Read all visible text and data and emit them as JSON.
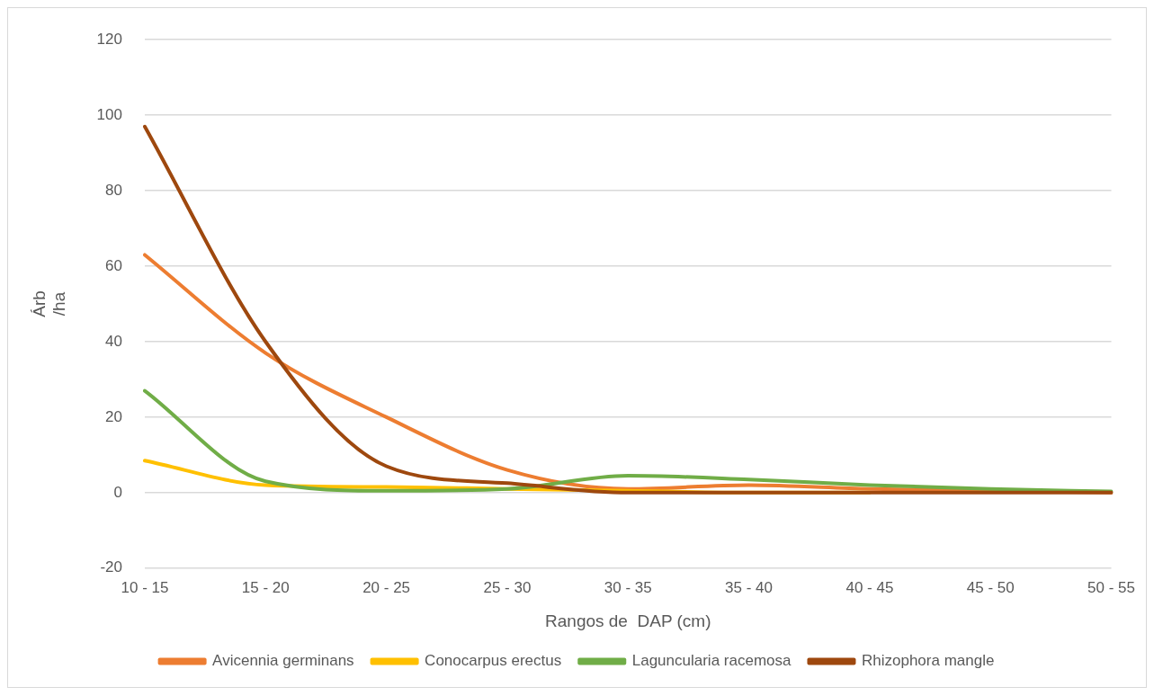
{
  "chart_data": {
    "type": "line",
    "xlabel": "Rangos de  DAP (cm)",
    "ylabel": "Árb\n/ha",
    "categories": [
      "10 - 15",
      "15 - 20",
      "20 - 25",
      "25 - 30",
      "30 - 35",
      "35 - 40",
      "40 - 45",
      "45 - 50",
      "50 - 55"
    ],
    "series": [
      {
        "name": "Avicennia germinans",
        "color": "#ed7d31",
        "values": [
          63,
          37,
          20,
          6,
          1,
          2,
          1,
          0.5,
          0
        ]
      },
      {
        "name": "Conocarpus erectus",
        "color": "#ffc000",
        "values": [
          8.5,
          2,
          1.5,
          1,
          0.5,
          0,
          0,
          null,
          null
        ]
      },
      {
        "name": "Laguncularia racemosa",
        "color": "#70ad47",
        "values": [
          27,
          3,
          0.5,
          1,
          4.5,
          3.5,
          2,
          1,
          0.3
        ]
      },
      {
        "name": "Rhizophora mangle",
        "color": "#9e480e",
        "values": [
          97,
          40,
          7,
          2.5,
          0,
          0,
          0,
          0,
          0
        ]
      }
    ],
    "ylim": [
      -20,
      120
    ],
    "yticks": [
      -20,
      0,
      20,
      40,
      60,
      80,
      100,
      120
    ],
    "grid": "y",
    "legend": "bottom",
    "marker": "none",
    "line_style": "solid"
  }
}
